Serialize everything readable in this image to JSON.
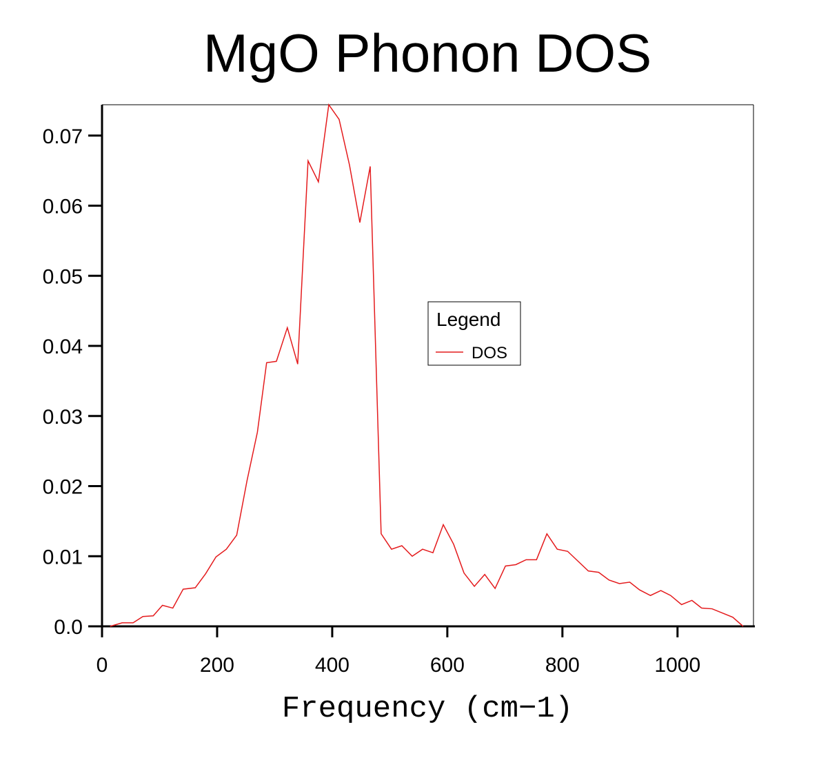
{
  "chart_data": {
    "type": "line",
    "title": "MgO Phonon DOS",
    "x_label": "Frequency (cm−1)",
    "legend_title": "Legend",
    "x": [
      14,
      35,
      54,
      71,
      89,
      105,
      123,
      141,
      162,
      180,
      198,
      216,
      234,
      252,
      270,
      286,
      303,
      322,
      340,
      358,
      376,
      394,
      412,
      430,
      448,
      466,
      485,
      503,
      521,
      539,
      557,
      575,
      593,
      611,
      629,
      647,
      665,
      683,
      701,
      719,
      737,
      755,
      773,
      791,
      809,
      827,
      845,
      863,
      881,
      899,
      917,
      934,
      953,
      971,
      988,
      1007,
      1025,
      1042,
      1060,
      1078,
      1096,
      1114
    ],
    "series": [
      {
        "name": "DOS",
        "color": "#e41a1c",
        "values": [
          0.0,
          0.0005,
          0.0005,
          0.0014,
          0.0015,
          0.003,
          0.0026,
          0.0053,
          0.0055,
          0.0075,
          0.0099,
          0.011,
          0.013,
          0.0208,
          0.0277,
          0.0376,
          0.0378,
          0.0426,
          0.0374,
          0.0664,
          0.0634,
          0.0744,
          0.0723,
          0.0658,
          0.0576,
          0.0656,
          0.0132,
          0.011,
          0.0115,
          0.01,
          0.011,
          0.0105,
          0.0145,
          0.0117,
          0.0076,
          0.0057,
          0.0074,
          0.0054,
          0.0086,
          0.0088,
          0.0095,
          0.0095,
          0.0132,
          0.011,
          0.0107,
          0.0093,
          0.0079,
          0.0077,
          0.0066,
          0.0061,
          0.0063,
          0.0052,
          0.0044,
          0.0051,
          0.0044,
          0.0031,
          0.0037,
          0.0026,
          0.0025,
          0.0019,
          0.0013,
          0.0
        ]
      }
    ],
    "xlim": [
      0,
      1132
    ],
    "xticks": [
      0,
      200,
      400,
      600,
      800,
      1000
    ],
    "ylim": [
      0,
      0.0744
    ],
    "yticks": [
      {
        "value": 0,
        "label": "0.0"
      },
      0.01,
      0.02,
      0.03,
      0.04,
      0.05,
      0.06,
      0.07
    ]
  }
}
